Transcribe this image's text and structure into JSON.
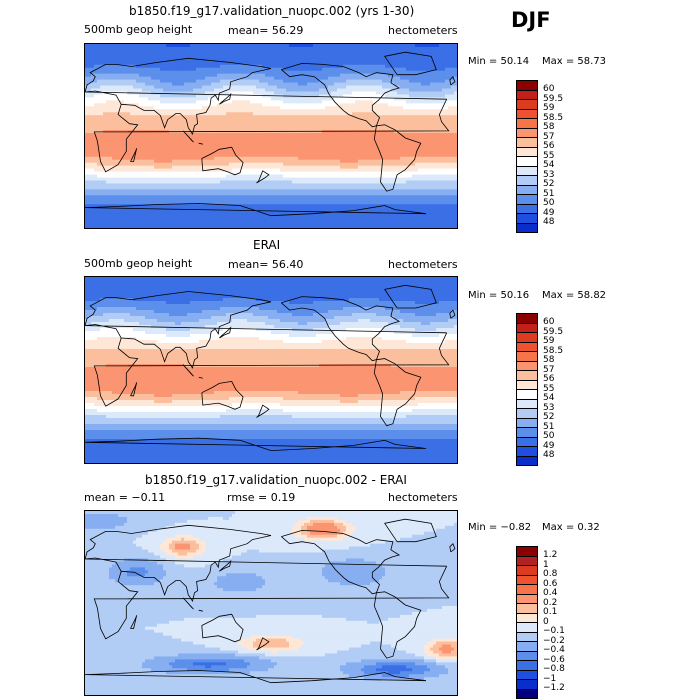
{
  "season": "DJF",
  "panels": [
    {
      "title": "b1850.f19_g17.validation_nuopc.002 (yrs 1-30)",
      "left_label": "500mb geop height",
      "center_label": "mean=  56.29",
      "units": "hectometers",
      "min_text": "Min =  50.14",
      "max_text": "Max =  58.73",
      "colorbar": {
        "labels": [
          "60",
          "59.5",
          "59",
          "58.5",
          "58",
          "57",
          "56",
          "55",
          "54",
          "53",
          "52",
          "51",
          "50",
          "49",
          "48"
        ],
        "colors": [
          "#8b0000",
          "#c1211a",
          "#dd3b1f",
          "#ee5230",
          "#f7734a",
          "#fb9470",
          "#fcbf9d",
          "#fee7d6",
          "#ffffff",
          "#dbe9fa",
          "#b2cdf5",
          "#86aef0",
          "#5c8fec",
          "#3a6fe6",
          "#1f4fe0",
          "#0a2ecc"
        ]
      },
      "field": {
        "kind": "z500",
        "base": 55.4,
        "amp": 5.0,
        "jitter": 0.35
      }
    },
    {
      "title": "ERAI",
      "left_label": "500mb geop height",
      "center_label": "mean=  56.40",
      "units": "hectometers",
      "min_text": "Min =  50.16",
      "max_text": "Max =  58.82",
      "colorbar": {
        "labels": [
          "60",
          "59.5",
          "59",
          "58.5",
          "58",
          "57",
          "56",
          "55",
          "54",
          "53",
          "52",
          "51",
          "50",
          "49",
          "48"
        ],
        "colors": [
          "#8b0000",
          "#c1211a",
          "#dd3b1f",
          "#ee5230",
          "#f7734a",
          "#fb9470",
          "#fcbf9d",
          "#fee7d6",
          "#ffffff",
          "#dbe9fa",
          "#b2cdf5",
          "#86aef0",
          "#5c8fec",
          "#3a6fe6",
          "#1f4fe0",
          "#0a2ecc"
        ]
      },
      "field": {
        "kind": "z500",
        "base": 55.5,
        "amp": 5.0,
        "jitter": 0.25
      }
    },
    {
      "title": "b1850.f19_g17.validation_nuopc.002 - ERAI",
      "left_label": "mean =  −0.11",
      "center_label": "rmse =   0.19",
      "units": "hectometers",
      "min_text": "Min =  −0.82",
      "max_text": "Max =   0.32",
      "colorbar": {
        "labels": [
          "1.2",
          "1",
          "0.8",
          "0.6",
          "0.4",
          "0.2",
          "0.1",
          "0",
          "−0.1",
          "−0.2",
          "−0.4",
          "−0.6",
          "−0.8",
          "−1",
          "−1.2"
        ],
        "colors": [
          "#8b0000",
          "#b22222",
          "#dd3b1f",
          "#ee5230",
          "#f7734a",
          "#fb9470",
          "#fcbf9d",
          "#fee7d6",
          "#dbe9fa",
          "#b2cdf5",
          "#86aef0",
          "#5c8fec",
          "#3a6fe6",
          "#1f4fe0",
          "#0a2ecc",
          "#000080"
        ]
      },
      "field": {
        "kind": "diff",
        "base": -0.12,
        "amp": 0.35,
        "jitter": 0.0
      }
    }
  ]
}
